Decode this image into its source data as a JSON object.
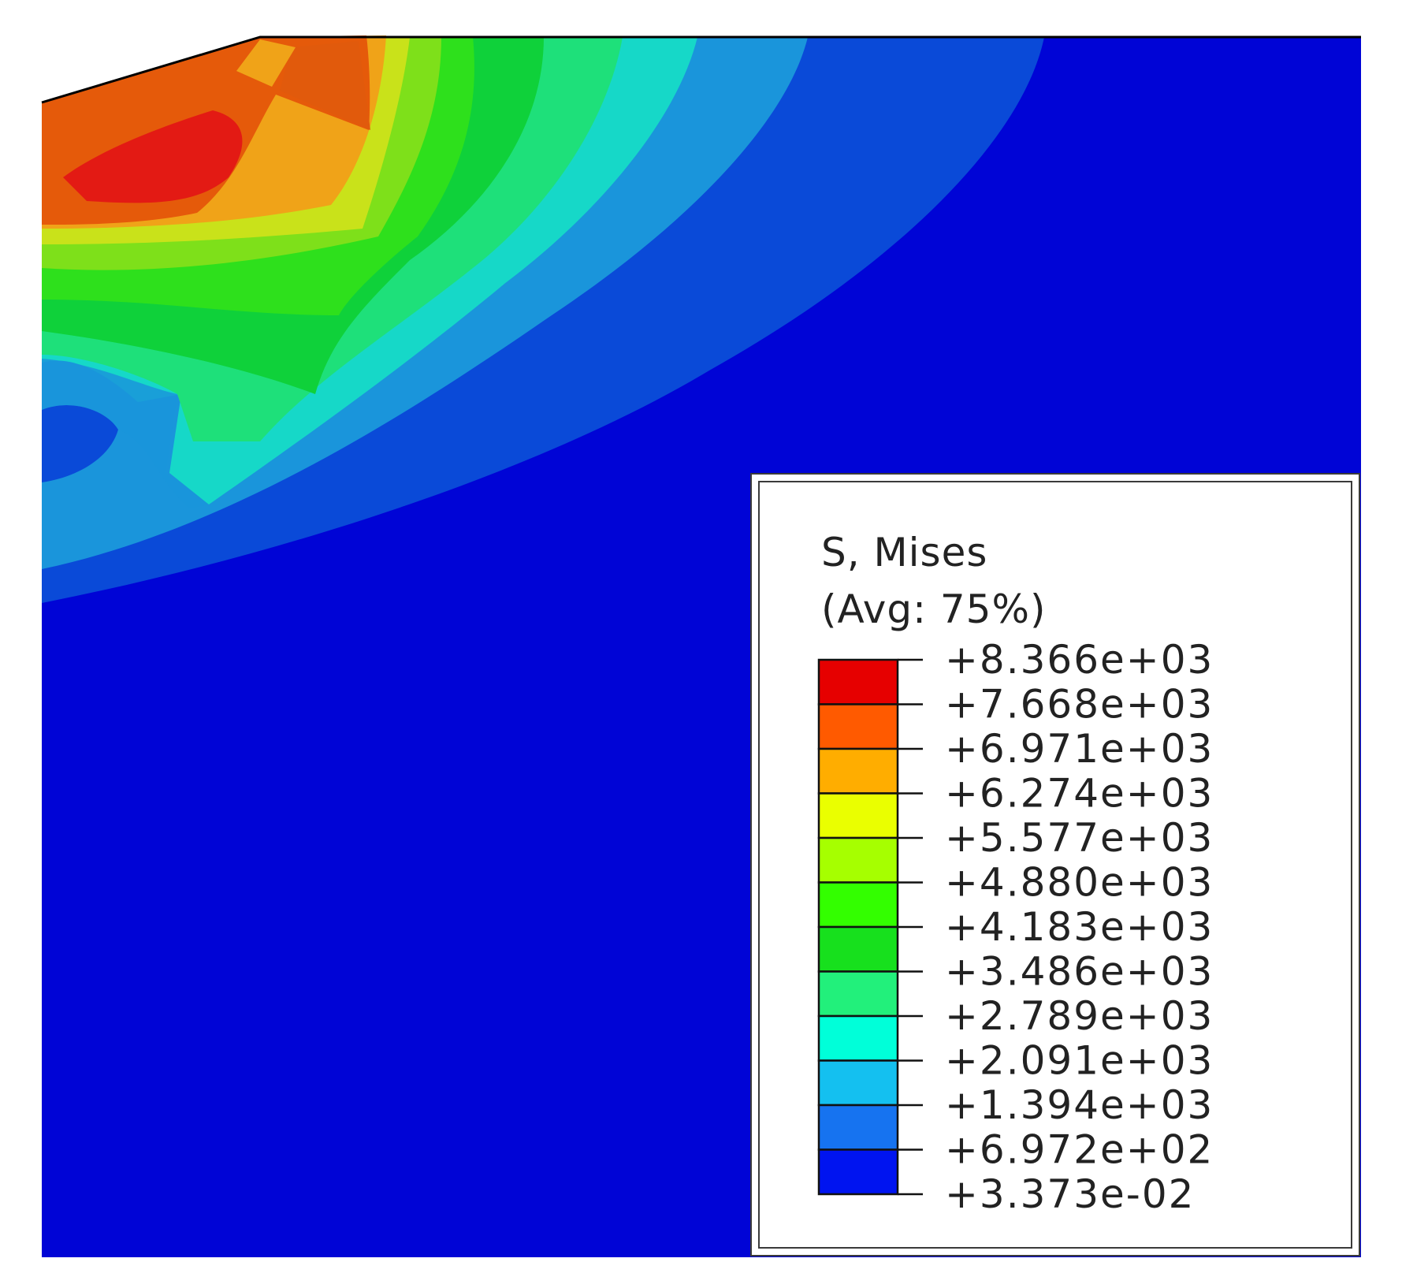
{
  "legend": {
    "title": "S, Mises",
    "subtitle": "(Avg: 75%)",
    "levels": [
      {
        "value": "+8.366e+03",
        "color": "#e60000"
      },
      {
        "value": "+7.668e+03",
        "color": "#ff5a00"
      },
      {
        "value": "+6.971e+03",
        "color": "#ffad00"
      },
      {
        "value": "+6.274e+03",
        "color": "#eaff00"
      },
      {
        "value": "+5.577e+03",
        "color": "#a6ff00"
      },
      {
        "value": "+4.880e+03",
        "color": "#33ff00"
      },
      {
        "value": "+4.183e+03",
        "color": "#17e01d"
      },
      {
        "value": "+3.486e+03",
        "color": "#22f07b"
      },
      {
        "value": "+2.789e+03",
        "color": "#00ffd9"
      },
      {
        "value": "+2.091e+03",
        "color": "#14c0f0"
      },
      {
        "value": "+1.394e+03",
        "color": "#1673f0"
      },
      {
        "value": "+6.972e+02",
        "color": "#0014f0"
      },
      {
        "value": "+3.373e-02",
        "color": null
      }
    ]
  },
  "colors": {
    "background_field": "#0004d6",
    "contour_edge": "#000000"
  }
}
